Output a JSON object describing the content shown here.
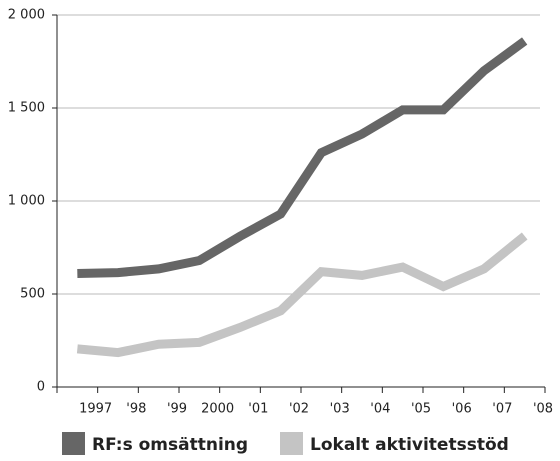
{
  "chart_data": {
    "type": "line",
    "categories": [
      "1997",
      "'98",
      "'99",
      "2000",
      "'01",
      "'02",
      "'03",
      "'04",
      "'05",
      "'06",
      "'07",
      "'08"
    ],
    "series": [
      {
        "name": "RF:s omsättning",
        "color": "#666666",
        "values": [
          610,
          615,
          635,
          680,
          810,
          930,
          1260,
          1360,
          1490,
          1490,
          1700,
          1860
        ]
      },
      {
        "name": "Lokalt aktivitetsstöd",
        "color": "#c4c4c4",
        "values": [
          205,
          185,
          230,
          240,
          320,
          410,
          620,
          600,
          645,
          540,
          635,
          812
        ]
      }
    ],
    "ylim": [
      0,
      2000
    ],
    "yticks": [
      0,
      500,
      {
        "value": 1000,
        "label": "1 000"
      },
      {
        "value": 1500,
        "label": "1 500"
      },
      {
        "value": 2000,
        "label": "2 000"
      }
    ],
    "grid": true
  }
}
